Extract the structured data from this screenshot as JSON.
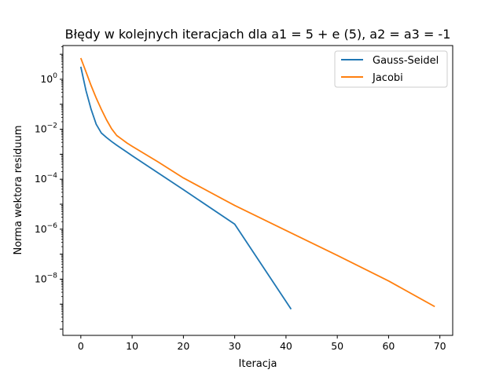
{
  "chart_data": {
    "type": "line",
    "title": "Błędy w kolejnych iteracjach dla a1 = 5 + e (5), a2 = a3 = -1",
    "xlabel": "Iteracja",
    "ylabel": "Norma wektora residuum",
    "xlim": [
      -3.5,
      72.5
    ],
    "ylim_log10": [
      -10.25,
      1.35
    ],
    "yscale": "log",
    "grid": false,
    "legend_position": "top-right",
    "x_ticks": [
      0,
      10,
      20,
      30,
      40,
      50,
      60,
      70
    ],
    "x_tick_labels": [
      "0",
      "10",
      "20",
      "30",
      "40",
      "50",
      "60",
      "70"
    ],
    "y_ticks_log10": [
      0,
      -2,
      -4,
      -6,
      -8
    ],
    "y_tick_labels": [
      {
        "base": "10",
        "exp": "0"
      },
      {
        "base": "10",
        "exp": "−2"
      },
      {
        "base": "10",
        "exp": "−4"
      },
      {
        "base": "10",
        "exp": "−6"
      },
      {
        "base": "10",
        "exp": "−8"
      }
    ],
    "series": [
      {
        "name": "Gauss-Seidel",
        "color": "#1f77b4",
        "points": [
          [
            0,
            0.5
          ],
          [
            1,
            -0.45
          ],
          [
            2,
            -1.2
          ],
          [
            3,
            -1.8
          ],
          [
            4,
            -2.15
          ],
          [
            5,
            -2.33
          ],
          [
            6,
            -2.49
          ],
          [
            7,
            -2.64
          ],
          [
            8,
            -2.78
          ],
          [
            9,
            -2.92
          ],
          [
            10,
            -3.06
          ],
          [
            20,
            -4.42
          ],
          [
            30,
            -5.8
          ],
          [
            41,
            -9.2
          ]
        ]
      },
      {
        "name": "Jacobi",
        "color": "#ff7f0e",
        "points": [
          [
            0,
            0.85
          ],
          [
            1,
            0.3
          ],
          [
            2,
            -0.25
          ],
          [
            3,
            -0.75
          ],
          [
            4,
            -1.2
          ],
          [
            5,
            -1.62
          ],
          [
            6,
            -1.98
          ],
          [
            7,
            -2.25
          ],
          [
            8,
            -2.4
          ],
          [
            9,
            -2.55
          ],
          [
            10,
            -2.68
          ],
          [
            15,
            -3.3
          ],
          [
            20,
            -3.95
          ],
          [
            30,
            -5.05
          ],
          [
            40,
            -6.05
          ],
          [
            50,
            -7.05
          ],
          [
            60,
            -8.07
          ],
          [
            69,
            -9.1
          ]
        ]
      }
    ]
  }
}
